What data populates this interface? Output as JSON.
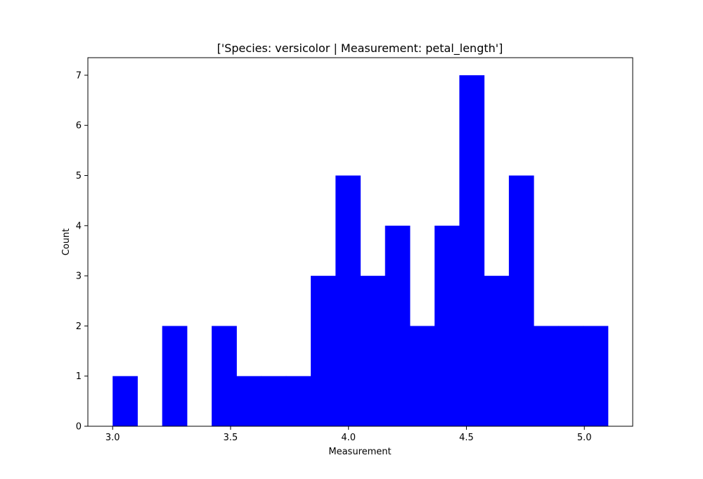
{
  "chart_data": {
    "type": "bar",
    "title": "['Species: versicolor | Measurement: petal_length']",
    "xlabel": "Measurement",
    "ylabel": "Count",
    "bar_color": "#0000ff",
    "bin_edges": [
      3.0,
      3.105,
      3.21,
      3.315,
      3.42,
      3.525,
      3.63,
      3.735,
      3.84,
      3.945,
      4.05,
      4.155,
      4.26,
      4.365,
      4.47,
      4.575,
      4.68,
      4.785,
      4.89,
      4.995,
      5.1
    ],
    "counts": [
      1,
      0,
      2,
      0,
      2,
      1,
      1,
      1,
      3,
      5,
      3,
      4,
      2,
      4,
      7,
      3,
      5,
      2,
      2,
      2
    ],
    "xlim": [
      2.895,
      5.205
    ],
    "ylim": [
      0,
      7.35
    ],
    "xticks": [
      3.0,
      3.5,
      4.0,
      4.5,
      5.0
    ],
    "xtick_labels": [
      "3.0",
      "3.5",
      "4.0",
      "4.5",
      "5.0"
    ],
    "yticks": [
      0,
      1,
      2,
      3,
      4,
      5,
      6,
      7
    ],
    "ytick_labels": [
      "0",
      "1",
      "2",
      "3",
      "4",
      "5",
      "6",
      "7"
    ],
    "grid": false,
    "legend": "none"
  }
}
